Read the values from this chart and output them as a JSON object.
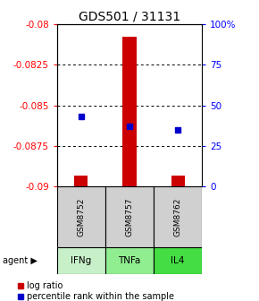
{
  "title": "GDS501 / 31131",
  "samples": [
    "GSM8752",
    "GSM8757",
    "GSM8762"
  ],
  "agents": [
    "IFNg",
    "TNFa",
    "IL4"
  ],
  "log_ratios": [
    -0.0893,
    -0.0808,
    -0.0893
  ],
  "percentile_ranks": [
    43,
    37,
    35
  ],
  "ylim_left": [
    -0.09,
    -0.08
  ],
  "ylim_right": [
    0,
    100
  ],
  "yticks_left": [
    -0.09,
    -0.0875,
    -0.085,
    -0.0825,
    -0.08
  ],
  "yticks_right": [
    0,
    25,
    50,
    75,
    100
  ],
  "bar_color": "#cc0000",
  "dot_color": "#0000cc",
  "sample_box_color": "#d0d0d0",
  "agent_colors": [
    "#c8f0c8",
    "#90ee90",
    "#44dd44"
  ],
  "title_fontsize": 10,
  "tick_fontsize": 7.5,
  "label_fontsize": 7.5,
  "legend_fontsize": 7
}
